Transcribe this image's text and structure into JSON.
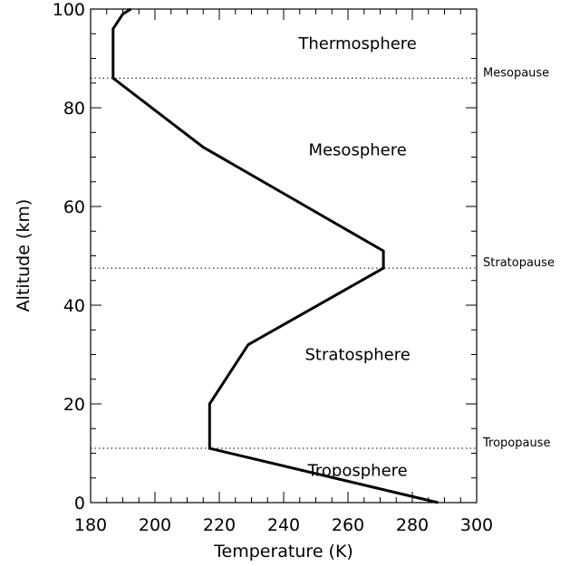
{
  "chart_data": {
    "type": "line",
    "title": "",
    "xlabel": "Temperature (K)",
    "ylabel": "Altitude (km)",
    "xlim": [
      180,
      300
    ],
    "ylim": [
      0,
      100
    ],
    "x_ticks": [
      180,
      200,
      220,
      240,
      260,
      280,
      300
    ],
    "y_ticks": [
      0,
      20,
      40,
      60,
      80,
      100
    ],
    "grid": false,
    "series": [
      {
        "x": [
          288,
          217,
          217,
          217,
          229,
          271,
          271,
          215,
          187,
          187,
          190,
          195
        ],
        "y": [
          0,
          11,
          15,
          20,
          32,
          47.5,
          51,
          72,
          86,
          96,
          99,
          101
        ]
      }
    ],
    "reference_lines": [
      {
        "y": 86,
        "label": "Mesopause"
      },
      {
        "y": 47.5,
        "label": "Stratopause"
      },
      {
        "y": 11,
        "label": "Tropopause"
      }
    ],
    "annotations": [
      {
        "text": "Thermosphere",
        "x": 263,
        "y": 93
      },
      {
        "text": "Mesosphere",
        "x": 263,
        "y": 71.5
      },
      {
        "text": "Stratosphere",
        "x": 263,
        "y": 30
      },
      {
        "text": "Troposphere",
        "x": 263,
        "y": 6.5
      }
    ],
    "colors": {
      "line": "#000000",
      "axis": "#000000"
    }
  }
}
